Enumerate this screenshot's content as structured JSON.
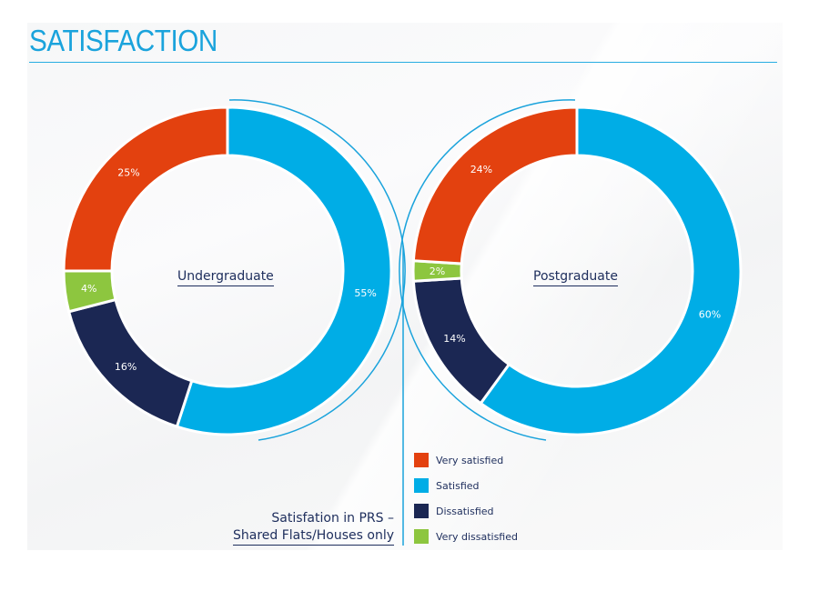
{
  "page": {
    "title": "SATISFACTION",
    "subtitle_line1": "Satisfation in PRS –",
    "subtitle_line2": "Shared Flats/Houses only"
  },
  "colors": {
    "very_satisfied": "#e3410f",
    "satisfied": "#00ade6",
    "dissatisfied": "#1b2753",
    "very_dissatisfied": "#8dc63f",
    "accent": "#1aa3dc"
  },
  "legend": [
    {
      "label": "Very satisfied",
      "color": "#e3410f"
    },
    {
      "label": "Satisfied",
      "color": "#00ade6"
    },
    {
      "label": "Dissatisfied",
      "color": "#1b2753"
    },
    {
      "label": "Very dissatisfied",
      "color": "#8dc63f"
    }
  ],
  "chart_data": [
    {
      "type": "pie",
      "variant": "donut",
      "title": "Undergraduate",
      "categories": [
        "Satisfied",
        "Dissatisfied",
        "Very dissatisfied",
        "Very satisfied"
      ],
      "values": [
        55,
        16,
        4,
        25
      ],
      "labels": [
        "55%",
        "16%",
        "4%",
        "25%"
      ],
      "colors": [
        "#00ade6",
        "#1b2753",
        "#8dc63f",
        "#e3410f"
      ],
      "start_angle": "12 o'clock, clockwise"
    },
    {
      "type": "pie",
      "variant": "donut",
      "title": "Postgraduate",
      "categories": [
        "Satisfied",
        "Dissatisfied",
        "Very dissatisfied",
        "Very satisfied"
      ],
      "values": [
        60,
        14,
        2,
        24
      ],
      "labels": [
        "60%",
        "14%",
        "2%",
        "24%"
      ],
      "colors": [
        "#00ade6",
        "#1b2753",
        "#8dc63f",
        "#e3410f"
      ],
      "start_angle": "12 o'clock, clockwise"
    }
  ]
}
